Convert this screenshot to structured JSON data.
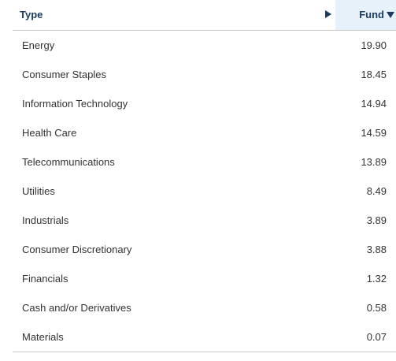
{
  "table": {
    "columns": {
      "type": "Type",
      "fund": "Fund"
    },
    "sort": {
      "column": "fund",
      "direction": "descending"
    },
    "rows": [
      {
        "type": "Energy",
        "fund": "19.90"
      },
      {
        "type": "Consumer Staples",
        "fund": "18.45"
      },
      {
        "type": "Information Technology",
        "fund": "14.94"
      },
      {
        "type": "Health Care",
        "fund": "14.59"
      },
      {
        "type": "Telecommunications",
        "fund": "13.89"
      },
      {
        "type": "Utilities",
        "fund": "8.49"
      },
      {
        "type": "Industrials",
        "fund": "3.89"
      },
      {
        "type": "Consumer Discretionary",
        "fund": "3.88"
      },
      {
        "type": "Financials",
        "fund": "1.32"
      },
      {
        "type": "Cash and/or Derivatives",
        "fund": "0.58"
      },
      {
        "type": "Materials",
        "fund": "0.07"
      }
    ]
  },
  "colors": {
    "header_text": "#1a3a5f",
    "active_column_bg": "#e6f1f9",
    "row_text": "#333333",
    "border": "#c9c9c9"
  },
  "icons": {
    "scroll": "scroll-right-arrow-icon",
    "sort": "sort-descending-icon"
  }
}
